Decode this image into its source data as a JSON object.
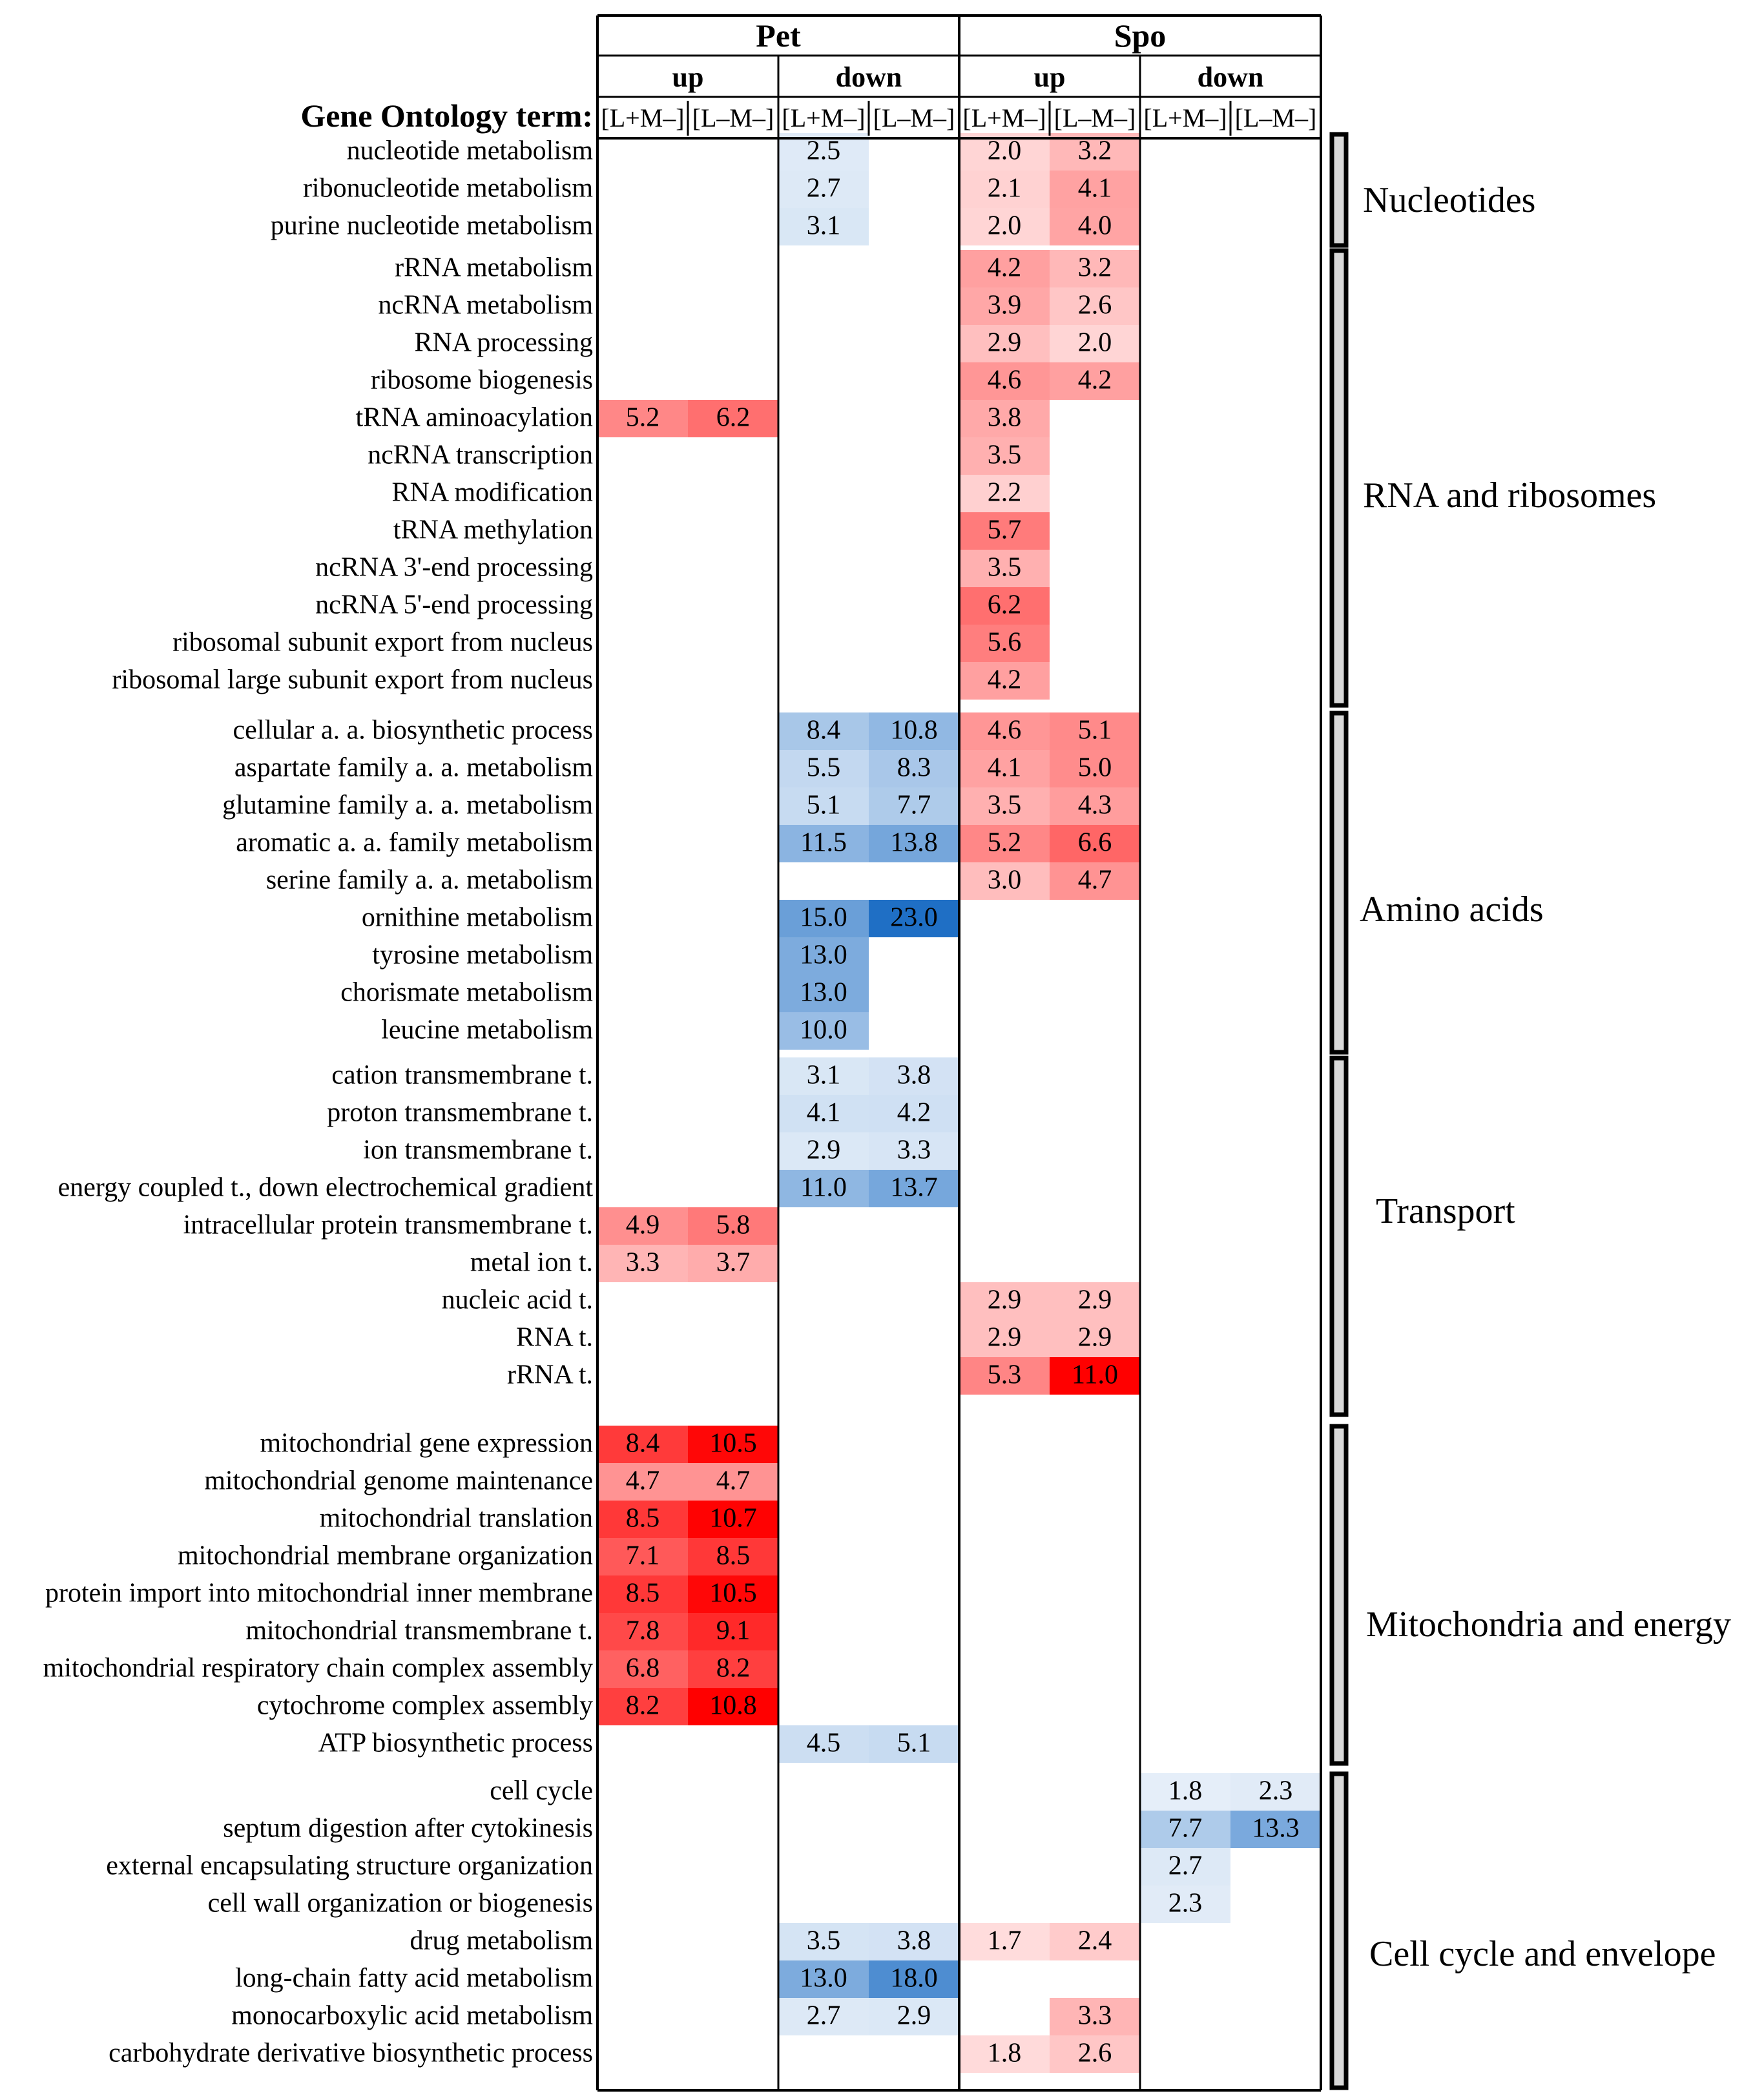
{
  "chart_data": {
    "type": "heatmap",
    "row_header_label": "Gene Ontology term:",
    "top_headers": [
      "Pet",
      "Spo"
    ],
    "mid_headers": [
      "up",
      "down",
      "up",
      "down"
    ],
    "columns": [
      "[L+M–]",
      "[L–M–]",
      "[L+M–]",
      "[L–M–]",
      "[L+M–]",
      "[L–M–]",
      "[L+M–]",
      "[L–M–]"
    ],
    "column_direction": [
      "up",
      "up",
      "down",
      "down",
      "up",
      "up",
      "down",
      "down"
    ],
    "color_scale": {
      "up_color": "#ff0000",
      "down_color": "#1f6fc5",
      "max_value": 23.0
    },
    "groups": [
      {
        "name": "Nucleotides",
        "rows": [
          {
            "term": "nucleotide metabolism",
            "values": [
              null,
              null,
              2.5,
              null,
              2.0,
              3.2,
              null,
              null
            ]
          },
          {
            "term": "ribonucleotide metabolism",
            "values": [
              null,
              null,
              2.7,
              null,
              2.1,
              4.1,
              null,
              null
            ]
          },
          {
            "term": "purine nucleotide metabolism",
            "values": [
              null,
              null,
              3.1,
              null,
              2.0,
              4.0,
              null,
              null
            ]
          }
        ]
      },
      {
        "name": "RNA and ribosomes",
        "rows": [
          {
            "term": "rRNA metabolism",
            "values": [
              null,
              null,
              null,
              null,
              4.2,
              3.2,
              null,
              null
            ]
          },
          {
            "term": "ncRNA metabolism",
            "values": [
              null,
              null,
              null,
              null,
              3.9,
              2.6,
              null,
              null
            ]
          },
          {
            "term": "RNA processing",
            "values": [
              null,
              null,
              null,
              null,
              2.9,
              2.0,
              null,
              null
            ]
          },
          {
            "term": "ribosome biogenesis",
            "values": [
              null,
              null,
              null,
              null,
              4.6,
              4.2,
              null,
              null
            ]
          },
          {
            "term": "tRNA aminoacylation",
            "values": [
              5.2,
              6.2,
              null,
              null,
              3.8,
              null,
              null,
              null
            ]
          },
          {
            "term": "ncRNA transcription",
            "values": [
              null,
              null,
              null,
              null,
              3.5,
              null,
              null,
              null
            ]
          },
          {
            "term": "RNA modification",
            "values": [
              null,
              null,
              null,
              null,
              2.2,
              null,
              null,
              null
            ]
          },
          {
            "term": "tRNA methylation",
            "values": [
              null,
              null,
              null,
              null,
              5.7,
              null,
              null,
              null
            ]
          },
          {
            "term": "ncRNA 3'-end processing",
            "values": [
              null,
              null,
              null,
              null,
              3.5,
              null,
              null,
              null
            ]
          },
          {
            "term": "ncRNA 5'-end processing",
            "values": [
              null,
              null,
              null,
              null,
              6.2,
              null,
              null,
              null
            ]
          },
          {
            "term": "ribosomal subunit export from nucleus",
            "values": [
              null,
              null,
              null,
              null,
              5.6,
              null,
              null,
              null
            ]
          },
          {
            "term": "ribosomal large subunit export from nucleus",
            "values": [
              null,
              null,
              null,
              null,
              4.2,
              null,
              null,
              null
            ]
          }
        ]
      },
      {
        "name": "Amino acids",
        "rows": [
          {
            "term": "cellular a. a. biosynthetic process",
            "values": [
              null,
              null,
              8.4,
              10.8,
              4.6,
              5.1,
              null,
              null
            ]
          },
          {
            "term": "aspartate family a. a. metabolism",
            "values": [
              null,
              null,
              5.5,
              8.3,
              4.1,
              5.0,
              null,
              null
            ]
          },
          {
            "term": "glutamine family a. a. metabolism",
            "values": [
              null,
              null,
              5.1,
              7.7,
              3.5,
              4.3,
              null,
              null
            ]
          },
          {
            "term": "aromatic a. a. family metabolism",
            "values": [
              null,
              null,
              11.5,
              13.8,
              5.2,
              6.6,
              null,
              null
            ]
          },
          {
            "term": "serine family a. a. metabolism",
            "values": [
              null,
              null,
              null,
              null,
              3.0,
              4.7,
              null,
              null
            ]
          },
          {
            "term": "ornithine metabolism",
            "values": [
              null,
              null,
              15.0,
              23.0,
              null,
              null,
              null,
              null
            ]
          },
          {
            "term": "tyrosine metabolism",
            "values": [
              null,
              null,
              13.0,
              null,
              null,
              null,
              null,
              null
            ]
          },
          {
            "term": "chorismate metabolism",
            "values": [
              null,
              null,
              13.0,
              null,
              null,
              null,
              null,
              null
            ]
          },
          {
            "term": "leucine metabolism",
            "values": [
              null,
              null,
              10.0,
              null,
              null,
              null,
              null,
              null
            ]
          }
        ]
      },
      {
        "name": "Transport",
        "rows": [
          {
            "term": "cation transmembrane t.",
            "values": [
              null,
              null,
              3.1,
              3.8,
              null,
              null,
              null,
              null
            ]
          },
          {
            "term": "proton transmembrane t.",
            "values": [
              null,
              null,
              4.1,
              4.2,
              null,
              null,
              null,
              null
            ]
          },
          {
            "term": "ion transmembrane t.",
            "values": [
              null,
              null,
              2.9,
              3.3,
              null,
              null,
              null,
              null
            ]
          },
          {
            "term": "energy coupled t., down electrochemical gradient",
            "values": [
              null,
              null,
              11.0,
              13.7,
              null,
              null,
              null,
              null
            ]
          },
          {
            "term": "intracellular protein transmembrane t.",
            "values": [
              4.9,
              5.8,
              null,
              null,
              null,
              null,
              null,
              null
            ]
          },
          {
            "term": "metal ion t.",
            "values": [
              3.3,
              3.7,
              null,
              null,
              null,
              null,
              null,
              null
            ]
          },
          {
            "term": "nucleic acid t.",
            "values": [
              null,
              null,
              null,
              null,
              2.9,
              2.9,
              null,
              null
            ]
          },
          {
            "term": "RNA t.",
            "values": [
              null,
              null,
              null,
              null,
              2.9,
              2.9,
              null,
              null
            ]
          },
          {
            "term": "rRNA t.",
            "values": [
              null,
              null,
              null,
              null,
              5.3,
              11.0,
              null,
              null
            ]
          }
        ]
      },
      {
        "name": "Mitochondria and energy",
        "rows": [
          {
            "term": "mitochondrial gene expression",
            "values": [
              8.4,
              10.5,
              null,
              null,
              null,
              null,
              null,
              null
            ]
          },
          {
            "term": "mitochondrial genome maintenance",
            "values": [
              4.7,
              4.7,
              null,
              null,
              null,
              null,
              null,
              null
            ]
          },
          {
            "term": "mitochondrial translation",
            "values": [
              8.5,
              10.7,
              null,
              null,
              null,
              null,
              null,
              null
            ]
          },
          {
            "term": "mitochondrial membrane organization",
            "values": [
              7.1,
              8.5,
              null,
              null,
              null,
              null,
              null,
              null
            ]
          },
          {
            "term": "protein import into mitochondrial inner membrane",
            "values": [
              8.5,
              10.5,
              null,
              null,
              null,
              null,
              null,
              null
            ]
          },
          {
            "term": "mitochondrial transmembrane t.",
            "values": [
              7.8,
              9.1,
              null,
              null,
              null,
              null,
              null,
              null
            ]
          },
          {
            "term": "mitochondrial respiratory chain complex assembly",
            "values": [
              6.8,
              8.2,
              null,
              null,
              null,
              null,
              null,
              null
            ]
          },
          {
            "term": "cytochrome complex assembly",
            "values": [
              8.2,
              10.8,
              null,
              null,
              null,
              null,
              null,
              null
            ]
          },
          {
            "term": "ATP biosynthetic process",
            "values": [
              null,
              null,
              4.5,
              5.1,
              null,
              null,
              null,
              null
            ]
          }
        ]
      },
      {
        "name": "Cell cycle and envelope",
        "rows": [
          {
            "term": "cell cycle",
            "values": [
              null,
              null,
              null,
              null,
              null,
              null,
              1.8,
              2.3
            ]
          },
          {
            "term": "septum digestion after cytokinesis",
            "values": [
              null,
              null,
              null,
              null,
              null,
              null,
              7.7,
              13.3
            ]
          },
          {
            "term": "external encapsulating structure organization",
            "values": [
              null,
              null,
              null,
              null,
              null,
              null,
              2.7,
              null
            ]
          },
          {
            "term": "cell wall organization or biogenesis",
            "values": [
              null,
              null,
              null,
              null,
              null,
              null,
              2.3,
              null
            ]
          },
          {
            "term": "drug metabolism",
            "values": [
              null,
              null,
              3.5,
              3.8,
              1.7,
              2.4,
              null,
              null
            ]
          },
          {
            "term": "long-chain fatty acid metabolism",
            "values": [
              null,
              null,
              13.0,
              18.0,
              null,
              null,
              null,
              null
            ]
          },
          {
            "term": "monocarboxylic acid metabolism",
            "values": [
              null,
              null,
              2.7,
              2.9,
              null,
              3.3,
              null,
              null
            ]
          },
          {
            "term": "carbohydrate derivative biosynthetic process",
            "values": [
              null,
              null,
              null,
              null,
              1.8,
              2.6,
              null,
              null
            ]
          }
        ]
      }
    ]
  }
}
